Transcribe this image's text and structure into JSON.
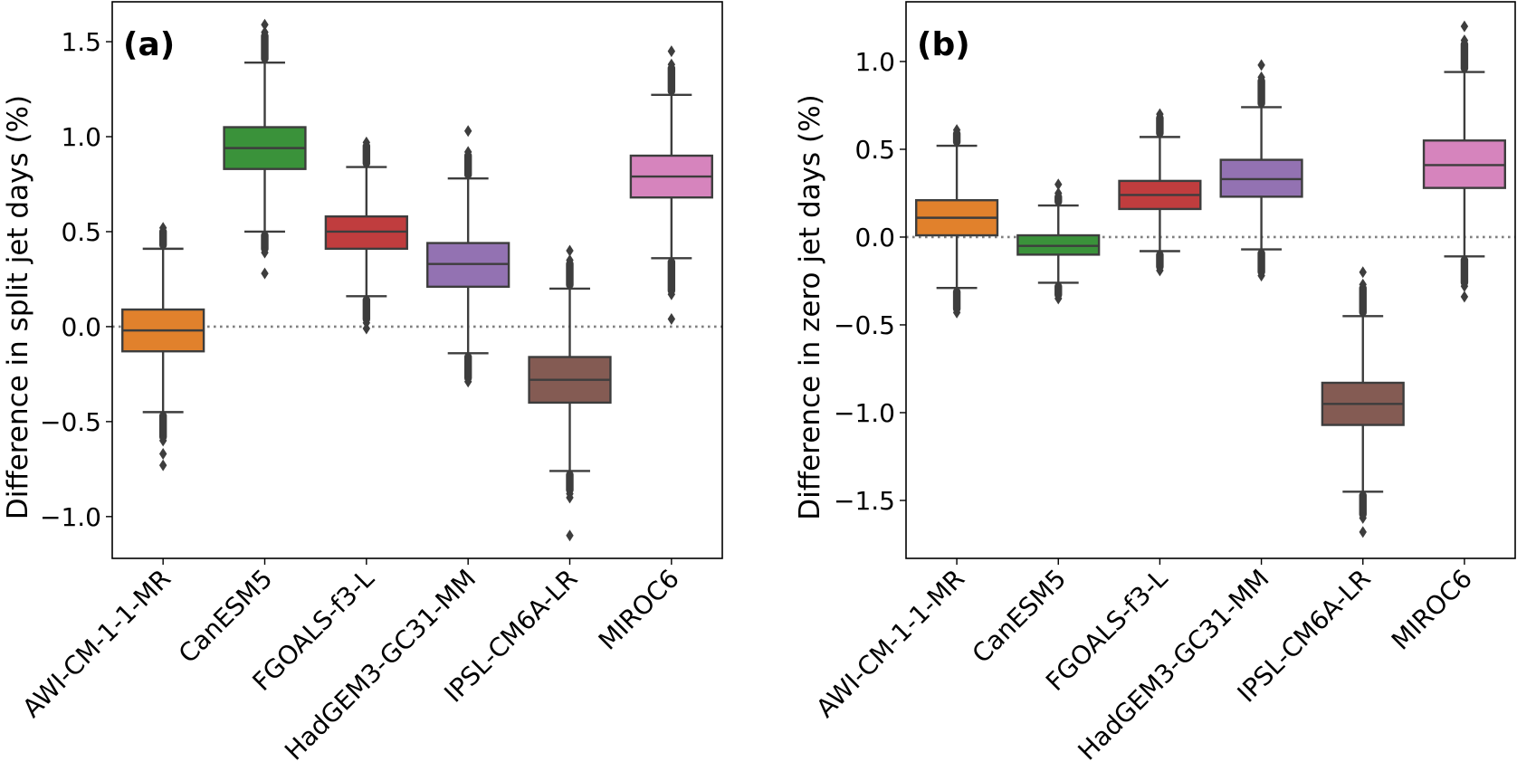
{
  "chart_data": [
    {
      "type": "box",
      "panel_label": "(a)",
      "title": "",
      "xlabel": "",
      "ylabel": "Difference in split jet days (%)",
      "ylim": [
        -1.22,
        1.71
      ],
      "yticks": [
        -1.0,
        -0.5,
        0.0,
        0.5,
        1.0,
        1.5
      ],
      "ytick_labels": [
        "−1.0",
        "−0.5",
        "0.0",
        "0.5",
        "1.0",
        "1.5"
      ],
      "reference_line": {
        "y": 0.0,
        "style": "dotted",
        "color": "#808080"
      },
      "grid": false,
      "categories": [
        "AWI-CM-1-1-MR",
        "CanESM5",
        "FGOALS-f3-L",
        "HadGEM3-GC31-MM",
        "IPSL-CM6A-LR",
        "MIROC6"
      ],
      "boxes": [
        {
          "name": "AWI-CM-1-1-MR",
          "color": "#e1812c",
          "whislo": -0.45,
          "q1": -0.13,
          "med": -0.02,
          "q3": 0.09,
          "whishi": 0.41,
          "flier_range_low": [
            -0.45,
            -0.6
          ],
          "flier_range_high": [
            0.41,
            0.52
          ],
          "fliers_extra": [
            -0.67,
            -0.73
          ]
        },
        {
          "name": "CanESM5",
          "color": "#3a923a",
          "whislo": 0.5,
          "q1": 0.83,
          "med": 0.94,
          "q3": 1.05,
          "whishi": 1.39,
          "flier_range_low": [
            0.5,
            0.39
          ],
          "flier_range_high": [
            1.39,
            1.55
          ],
          "fliers_extra": [
            0.28,
            1.59
          ]
        },
        {
          "name": "FGOALS-f3-L",
          "color": "#c03d3e",
          "whislo": 0.16,
          "q1": 0.41,
          "med": 0.5,
          "q3": 0.58,
          "whishi": 0.84,
          "flier_range_low": [
            0.16,
            0.02
          ],
          "flier_range_high": [
            0.84,
            0.97
          ],
          "fliers_extra": [
            -0.01
          ]
        },
        {
          "name": "HadGEM3-GC31-MM",
          "color": "#9372b2",
          "whislo": -0.14,
          "q1": 0.21,
          "med": 0.33,
          "q3": 0.44,
          "whishi": 0.78,
          "flier_range_low": [
            -0.14,
            -0.29
          ],
          "flier_range_high": [
            0.78,
            0.92
          ],
          "fliers_extra": [
            1.03
          ]
        },
        {
          "name": "IPSL-CM6A-LR",
          "color": "#845b53",
          "whislo": -0.76,
          "q1": -0.4,
          "med": -0.28,
          "q3": -0.16,
          "whishi": 0.2,
          "flier_range_low": [
            -0.76,
            -0.88
          ],
          "flier_range_high": [
            0.2,
            0.35
          ],
          "fliers_extra": [
            0.4,
            -0.9,
            -1.1
          ]
        },
        {
          "name": "MIROC6",
          "color": "#d684bd",
          "whislo": 0.36,
          "q1": 0.68,
          "med": 0.79,
          "q3": 0.9,
          "whishi": 1.22,
          "flier_range_low": [
            0.36,
            0.17
          ],
          "flier_range_high": [
            1.22,
            1.38
          ],
          "fliers_extra": [
            1.45,
            0.04
          ]
        }
      ]
    },
    {
      "type": "box",
      "panel_label": "(b)",
      "title": "",
      "xlabel": "",
      "ylabel": "Difference in zero jet days (%)",
      "ylim": [
        -1.83,
        1.34
      ],
      "yticks": [
        -1.5,
        -1.0,
        -0.5,
        0.0,
        0.5,
        1.0
      ],
      "ytick_labels": [
        "−1.5",
        "−1.0",
        "−0.5",
        "0.0",
        "0.5",
        "1.0"
      ],
      "reference_line": {
        "y": 0.0,
        "style": "dotted",
        "color": "#808080"
      },
      "grid": false,
      "categories": [
        "AWI-CM-1-1-MR",
        "CanESM5",
        "FGOALS-f3-L",
        "HadGEM3-GC31-MM",
        "IPSL-CM6A-LR",
        "MIROC6"
      ],
      "boxes": [
        {
          "name": "AWI-CM-1-1-MR",
          "color": "#e1812c",
          "whislo": -0.29,
          "q1": 0.01,
          "med": 0.11,
          "q3": 0.21,
          "whishi": 0.52,
          "flier_range_low": [
            -0.29,
            -0.43
          ],
          "flier_range_high": [
            0.52,
            0.61
          ],
          "fliers_extra": []
        },
        {
          "name": "CanESM5",
          "color": "#3a923a",
          "whislo": -0.26,
          "q1": -0.1,
          "med": -0.05,
          "q3": 0.01,
          "whishi": 0.18,
          "flier_range_low": [
            -0.26,
            -0.35
          ],
          "flier_range_high": [
            0.18,
            0.25
          ],
          "fliers_extra": [
            0.3
          ]
        },
        {
          "name": "FGOALS-f3-L",
          "color": "#c03d3e",
          "whislo": -0.08,
          "q1": 0.16,
          "med": 0.24,
          "q3": 0.32,
          "whishi": 0.57,
          "flier_range_low": [
            -0.08,
            -0.19
          ],
          "flier_range_high": [
            0.57,
            0.7
          ],
          "fliers_extra": []
        },
        {
          "name": "HadGEM3-GC31-MM",
          "color": "#9372b2",
          "whislo": -0.07,
          "q1": 0.23,
          "med": 0.33,
          "q3": 0.44,
          "whishi": 0.74,
          "flier_range_low": [
            -0.07,
            -0.22
          ],
          "flier_range_high": [
            0.74,
            0.91
          ],
          "fliers_extra": [
            0.98
          ]
        },
        {
          "name": "IPSL-CM6A-LR",
          "color": "#845b53",
          "whislo": -1.45,
          "q1": -1.07,
          "med": -0.95,
          "q3": -0.83,
          "whishi": -0.45,
          "flier_range_low": [
            -1.45,
            -1.6
          ],
          "flier_range_high": [
            -0.45,
            -0.27
          ],
          "fliers_extra": [
            -0.2,
            -1.68
          ]
        },
        {
          "name": "MIROC6",
          "color": "#d684bd",
          "whislo": -0.11,
          "q1": 0.28,
          "med": 0.41,
          "q3": 0.55,
          "whishi": 0.94,
          "flier_range_low": [
            -0.11,
            -0.28
          ],
          "flier_range_high": [
            0.94,
            1.12
          ],
          "fliers_extra": [
            1.2,
            -0.34
          ]
        }
      ]
    }
  ]
}
